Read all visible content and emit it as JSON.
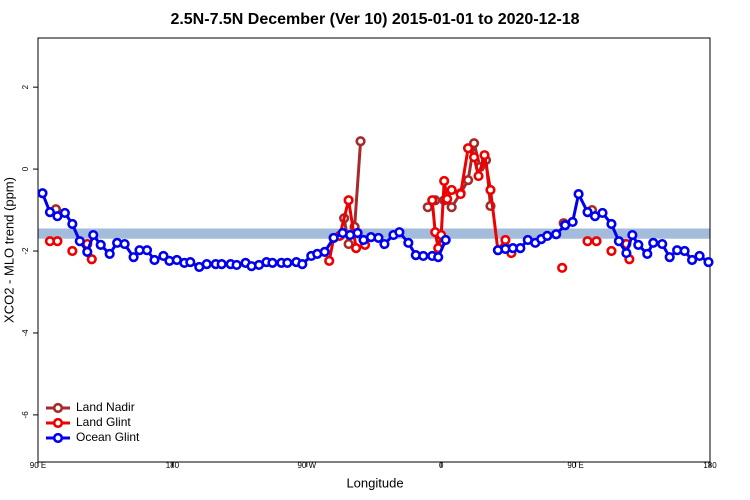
{
  "chart_data": {
    "type": "line",
    "title": "2.5N-7.5N December (Ver 10)   2015-01-01 to 2020-12-18",
    "x_label": "Longitude",
    "y_label": "XCO2 - MLO trend (ppm)",
    "xlim": [
      -270,
      180
    ],
    "ylim": [
      -7.15,
      3.2
    ],
    "xticks": [
      {
        "value": -270,
        "label": "90 E"
      },
      {
        "value": -180,
        "label": "180"
      },
      {
        "value": -90,
        "label": "90 W"
      },
      0,
      {
        "value": 90,
        "label": "90 E"
      },
      180
    ],
    "yticks": [
      -6,
      -4,
      -2,
      0,
      2
    ],
    "band_ylim": [
      -1.7,
      -1.45
    ],
    "band_color": "#a3bcdc",
    "legend": "bottom-left",
    "series": [
      {
        "name": "Land Nadir",
        "color": "#a52a2a",
        "x": [
          -258,
          null,
          -65,
          -62,
          -58,
          -54,
          null,
          -9,
          -4,
          2,
          7,
          13,
          18,
          22,
          26,
          30,
          33,
          null,
          82,
          null,
          101,
          null,
          123
        ],
        "values": [
          -0.98,
          null,
          -1.2,
          -1.83,
          -1.41,
          0.68,
          null,
          -0.93,
          -0.76,
          -0.76,
          -0.93,
          -0.59,
          -0.27,
          0.63,
          0.05,
          0.22,
          -0.9,
          null,
          -1.32,
          null,
          -1.0,
          null,
          -1.83
        ]
      },
      {
        "name": "Land Glint",
        "color": "#ee0000",
        "x": [
          -262,
          -257,
          null,
          -247,
          null,
          -237,
          -234,
          null,
          -75,
          -72,
          -68,
          -62,
          -57,
          -51,
          null,
          -6,
          -4,
          -2,
          0,
          2,
          4,
          7,
          13,
          18,
          22,
          25,
          29,
          33,
          38,
          43,
          47,
          null,
          81,
          null,
          98,
          104,
          null,
          114,
          null,
          124,
          126
        ],
        "values": [
          -1.76,
          -1.76,
          null,
          -2.0,
          null,
          -1.83,
          -2.2,
          null,
          -2.24,
          -1.68,
          -1.63,
          -0.76,
          -1.93,
          -1.85,
          null,
          -0.76,
          -1.54,
          -1.93,
          -1.61,
          -0.29,
          -0.73,
          -0.51,
          -0.61,
          0.51,
          0.29,
          -0.17,
          0.34,
          -0.51,
          -1.98,
          -1.73,
          -2.05,
          null,
          -2.41,
          null,
          -1.76,
          -1.76,
          null,
          -2.0,
          null,
          -1.83,
          -2.2
        ]
      },
      {
        "name": "Ocean Glint",
        "color": "#0000ee",
        "x": [
          -267,
          -262,
          -257,
          -252,
          -247,
          -242,
          -237,
          -233,
          -228,
          -222,
          -217,
          -212,
          -206,
          -202,
          -197,
          -192,
          -186,
          -182,
          -177,
          -172,
          -168,
          -162,
          -157,
          -151,
          -147,
          -141,
          -137,
          -131,
          -127,
          -122,
          -117,
          -113,
          -107,
          -103,
          -97,
          -93,
          -87,
          -83,
          -78,
          -72,
          -66,
          -61,
          -56,
          -52,
          -47,
          -42,
          -38,
          -32,
          -28,
          -22,
          -17,
          -12,
          -6,
          -2,
          3,
          null,
          38,
          43,
          48,
          53,
          58,
          63,
          67,
          71,
          77,
          83,
          88,
          92,
          98,
          103,
          108,
          114,
          119,
          124,
          128,
          132,
          138,
          142,
          148,
          153,
          158,
          163,
          168,
          173,
          179
        ],
        "values": [
          -0.59,
          -1.05,
          -1.15,
          -1.07,
          -1.34,
          -1.76,
          -2.02,
          -1.61,
          -1.85,
          -2.07,
          -1.8,
          -1.83,
          -2.15,
          -1.98,
          -1.98,
          -2.22,
          -2.12,
          -2.24,
          -2.22,
          -2.29,
          -2.27,
          -2.39,
          -2.32,
          -2.32,
          -2.32,
          -2.32,
          -2.34,
          -2.29,
          -2.37,
          -2.34,
          -2.27,
          -2.29,
          -2.29,
          -2.29,
          -2.27,
          -2.32,
          -2.12,
          -2.07,
          -2.02,
          -1.68,
          -1.56,
          -1.61,
          -1.56,
          -1.73,
          -1.66,
          -1.68,
          -1.83,
          -1.61,
          -1.54,
          -1.8,
          -2.1,
          -2.12,
          -2.12,
          -2.15,
          -1.73,
          null,
          -1.98,
          -1.95,
          -1.93,
          -1.93,
          -1.73,
          -1.8,
          -1.71,
          -1.63,
          -1.59,
          -1.37,
          -1.29,
          -0.61,
          -1.05,
          -1.15,
          -1.07,
          -1.34,
          -1.76,
          -2.05,
          -1.61,
          -1.85,
          -2.07,
          -1.8,
          -1.83,
          -2.15,
          -1.98,
          -2.0,
          -2.22,
          -2.12,
          -2.27
        ]
      }
    ]
  }
}
